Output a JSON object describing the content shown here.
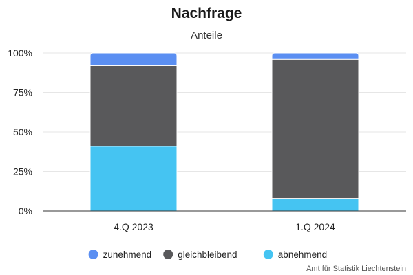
{
  "chart_data": {
    "type": "bar",
    "stacked": true,
    "title": "Nachfrage",
    "subtitle": "Anteile",
    "categories": [
      "4.Q 2023",
      "1.Q 2024"
    ],
    "series": [
      {
        "name": "abnehmend",
        "color": "#45c4f2",
        "values": [
          41,
          8
        ]
      },
      {
        "name": "gleichbleibend",
        "color": "#59595b",
        "values": [
          51,
          88
        ]
      },
      {
        "name": "zunehmend",
        "color": "#5b8ff2",
        "values": [
          8,
          4
        ]
      }
    ],
    "legend_order": [
      "zunehmend",
      "gleichbleibend",
      "abnehmend"
    ],
    "ylim": [
      0,
      100
    ],
    "yticks": [
      0,
      25,
      50,
      75,
      100
    ],
    "ytick_labels": [
      "0%",
      "25%",
      "50%",
      "75%",
      "100%"
    ],
    "grid": true,
    "legend_position": "bottom-center",
    "credit": "Amt für Statistik Liechtenstein"
  }
}
